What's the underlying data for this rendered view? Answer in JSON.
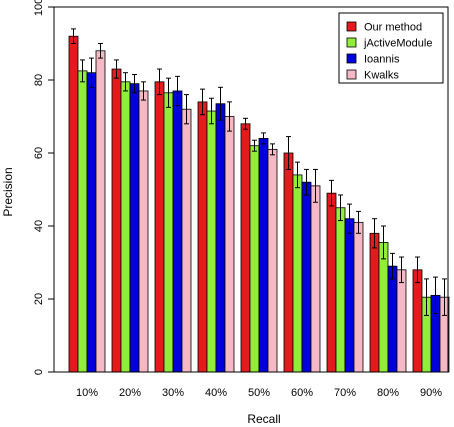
{
  "chart_data": {
    "type": "bar",
    "xlabel": "Recall",
    "ylabel": "Precision",
    "ylim": [
      0,
      100
    ],
    "yticks": [
      0,
      20,
      40,
      60,
      80,
      100
    ],
    "categories": [
      "10%",
      "20%",
      "30%",
      "40%",
      "50%",
      "60%",
      "70%",
      "80%",
      "90%"
    ],
    "legend_position": "top-right",
    "series": [
      {
        "name": "Our method",
        "color": "#e41a1c",
        "values": [
          92,
          83,
          79.5,
          74,
          68,
          60,
          49,
          38,
          28
        ],
        "errors": [
          2,
          2.5,
          3.5,
          3.5,
          1.5,
          4.5,
          3.5,
          4,
          3.5
        ]
      },
      {
        "name": "jActiveModule",
        "color": "#90ee3a",
        "values": [
          82.5,
          79.5,
          76.5,
          71.5,
          62,
          54,
          45,
          35.5,
          20.5
        ],
        "errors": [
          3,
          2.5,
          4,
          3.5,
          1.5,
          3.5,
          3.5,
          4.5,
          5
        ]
      },
      {
        "name": "Ioannis",
        "color": "#0000dd",
        "values": [
          82,
          79,
          77,
          73.5,
          64,
          52,
          42,
          29,
          21
        ],
        "errors": [
          4,
          2.5,
          4,
          4.5,
          1.5,
          3.5,
          4,
          3.5,
          5
        ]
      },
      {
        "name": "Kwalks",
        "color": "#f4b9c4",
        "values": [
          88,
          77,
          72,
          70,
          61,
          51,
          41,
          28,
          20.5
        ],
        "errors": [
          2,
          2.5,
          4,
          4,
          1.5,
          4.5,
          3,
          3.5,
          5
        ]
      }
    ]
  }
}
